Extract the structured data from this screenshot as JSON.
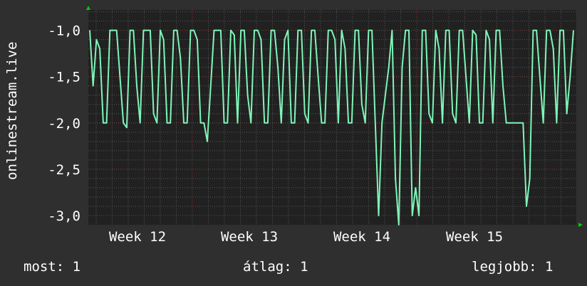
{
  "chart_data": {
    "type": "line",
    "title": "",
    "xlabel": "",
    "ylabel": "onlinestream.live",
    "ylim": [
      -3.1,
      -0.78
    ],
    "yticks": [
      -1.0,
      -1.5,
      -2.0,
      -2.5,
      -3.0
    ],
    "ytick_labels": [
      "-1,0",
      "-1,5",
      "-2,0",
      "-2,5",
      "-3,0"
    ],
    "xtick_labels": [
      "Week 12",
      "Week 13",
      "Week 14",
      "Week 15"
    ],
    "grid": true,
    "colors": {
      "background": "#2f2f2f",
      "plot_background": "#212121",
      "line": "#7ff5b8",
      "grid": "#555555",
      "major_grid": "#7a3a3a",
      "arrow": "#00cc00"
    },
    "series": [
      {
        "values": [
          -1,
          -1.6,
          -1.1,
          -1.2,
          -2,
          -2,
          -1,
          -1,
          -1,
          -1.5,
          -2,
          -2.05,
          -1,
          -1,
          -1.6,
          -2,
          -1,
          -1,
          -1,
          -1.9,
          -2,
          -1,
          -1.1,
          -2,
          -2,
          -1,
          -1,
          -1.3,
          -2,
          -2,
          -1,
          -1,
          -1.1,
          -2,
          -2,
          -2.2,
          -1.6,
          -1,
          -1,
          -1,
          -2,
          -2,
          -1,
          -1.05,
          -2,
          -1,
          -1,
          -1.7,
          -2,
          -1,
          -1,
          -1.1,
          -2,
          -2,
          -1,
          -1,
          -1.4,
          -2,
          -1.1,
          -1,
          -2,
          -2,
          -1,
          -1,
          -1.9,
          -2,
          -1,
          -1,
          -1.5,
          -2,
          -2,
          -1,
          -1,
          -1.1,
          -2,
          -1,
          -1.2,
          -2,
          -2,
          -1,
          -1,
          -1.8,
          -2,
          -1,
          -1,
          -2,
          -3.0,
          -2,
          -1.7,
          -1.4,
          -1,
          -2.6,
          -3.1,
          -1.4,
          -1,
          -1,
          -3.0,
          -2.7,
          -3.0,
          -1,
          -1,
          -1.9,
          -2,
          -1,
          -1.2,
          -2,
          -1,
          -1,
          -1.9,
          -2,
          -1,
          -1,
          -1.5,
          -2,
          -1,
          -1.05,
          -2,
          -2,
          -1,
          -1.1,
          -2,
          -1,
          -1,
          -1.6,
          -2,
          -2,
          -2,
          -2,
          -2,
          -2,
          -2.9,
          -2.6,
          -1,
          -1,
          -1.5,
          -2,
          -1,
          -1,
          -1.2,
          -2,
          -1,
          -1,
          -1.9,
          -1.5,
          -1
        ]
      }
    ]
  },
  "legend": {
    "current": "most: 1",
    "average": "átlag: 1",
    "max": "legjobb: 1"
  }
}
